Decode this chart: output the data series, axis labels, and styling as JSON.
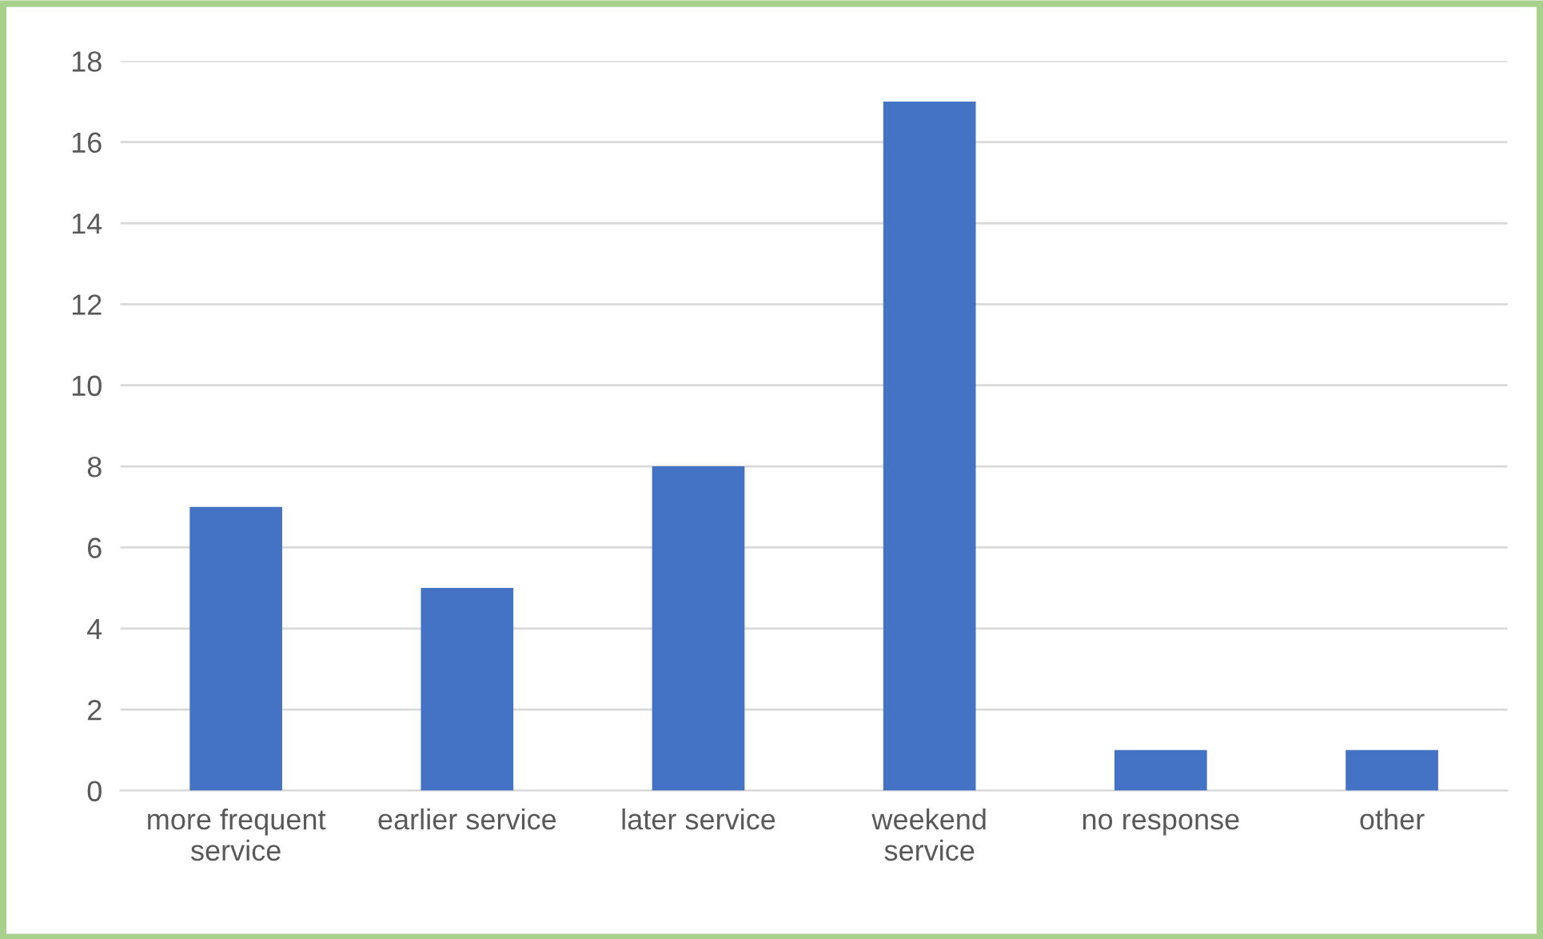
{
  "chart_data": {
    "type": "bar",
    "categories": [
      "more frequent\nservice",
      "earlier service",
      "later service",
      "weekend\nservice",
      "no response",
      "other"
    ],
    "values": [
      7,
      5,
      8,
      17,
      1,
      1
    ],
    "color": "#4472c4",
    "ylim": [
      0,
      18
    ],
    "yticks": [
      0,
      2,
      4,
      6,
      8,
      10,
      12,
      14,
      16,
      18
    ],
    "grid": "y"
  }
}
